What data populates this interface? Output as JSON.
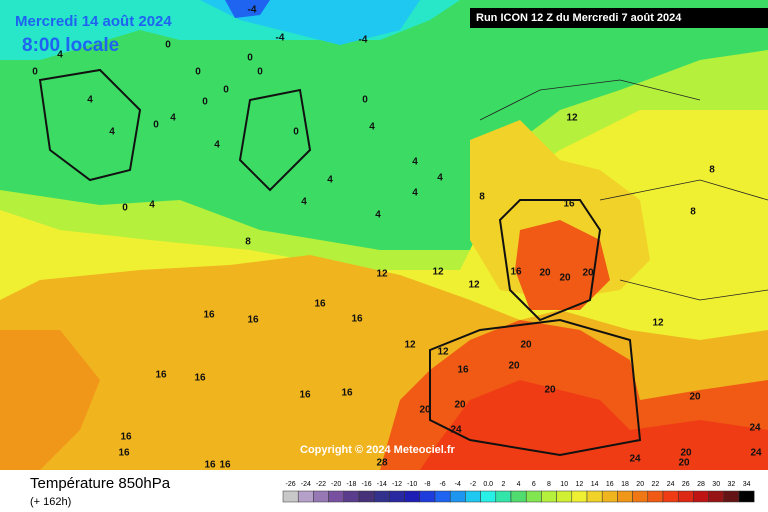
{
  "header": {
    "date": "Mercredi 14 août 2024",
    "time": "8:00 locale",
    "run": "Run ICON 12 Z du Mercredi 7 août 2024"
  },
  "copyright": "Copyright © 2024 Meteociel.fr",
  "footer": {
    "title": "Température 850hPa",
    "lead": "(+ 162h)"
  },
  "map_labels": [
    "-4",
    "-4",
    "-4",
    "0",
    "0",
    "0",
    "0",
    "0",
    "0",
    "0",
    "4",
    "4",
    "4",
    "4",
    "4",
    "0",
    "0",
    "4",
    "0",
    "0",
    "4",
    "4",
    "4",
    "4",
    "4",
    "4",
    "4",
    "8",
    "8",
    "8",
    "8",
    "12",
    "12",
    "12",
    "12",
    "16",
    "20",
    "20",
    "20",
    "16",
    "12",
    "16",
    "16",
    "16",
    "16",
    "16",
    "16",
    "16",
    "16",
    "12",
    "12",
    "16",
    "20",
    "20",
    "20",
    "20",
    "20",
    "24",
    "24",
    "24",
    "20",
    "28",
    "16",
    "16",
    "16",
    "16",
    "20",
    "20",
    "24"
  ],
  "colorbar": {
    "labels": [
      "-26",
      "-24",
      "-22",
      "-20",
      "-18",
      "-16",
      "-14",
      "-12",
      "-10",
      "-8",
      "-6",
      "-4",
      "-2",
      "0.0",
      "2",
      "4",
      "6",
      "8",
      "10",
      "12",
      "14",
      "16",
      "18",
      "20",
      "22",
      "24",
      "26",
      "28",
      "30",
      "32",
      "34"
    ],
    "colors": [
      "#c8c8c8",
      "#b4a0c8",
      "#9678b4",
      "#7850a0",
      "#5a3c8c",
      "#463278",
      "#32328c",
      "#2828a0",
      "#1e1eb4",
      "#1e3cdc",
      "#1e64f0",
      "#1e96f0",
      "#1ec8f0",
      "#28f0e6",
      "#32e6aa",
      "#50dc6e",
      "#82e650",
      "#b4f03c",
      "#d2f032",
      "#f0f032",
      "#f0d228",
      "#f0b41e",
      "#f09619",
      "#f07814",
      "#f05a14",
      "#f03c14",
      "#dc2814",
      "#be1414",
      "#961414",
      "#641414",
      "#000000"
    ]
  }
}
